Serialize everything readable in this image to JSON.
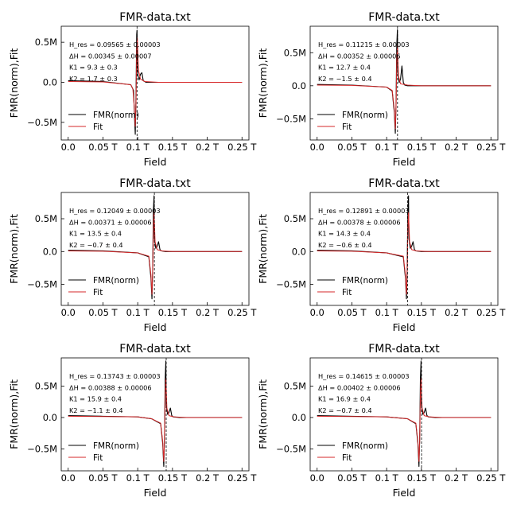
{
  "colors": {
    "data": "#000000",
    "fit": "#d62728",
    "marker": "#000000"
  },
  "chart_data": [
    {
      "type": "line",
      "title": "FMR-data.txt",
      "xlabel": "Field",
      "ylabel": "FMR(norm),Fit",
      "xlim": [
        -0.01,
        0.26
      ],
      "ylim": [
        -0.72,
        0.7
      ],
      "x_ticks": [
        0,
        0.05,
        0.1,
        0.15,
        0.2,
        0.25
      ],
      "x_tick_labels": [
        "0.0",
        "0.05 T",
        "0.1 T",
        "0.15 T",
        "0.2 T",
        "0.25 T"
      ],
      "y_ticks": [
        -0.5,
        0,
        0.5
      ],
      "y_tick_labels": [
        "−0.5M",
        "0.0",
        "0.5M"
      ],
      "legend": {
        "location": "lower-left",
        "entries": [
          "FMR(norm)",
          "Fit"
        ]
      },
      "annotation": [
        "H_res = 0.09565 ± 0.00003",
        "ΔH = 0.00345 ± 0.00007",
        "K1 = 9.3 ± 0.3",
        "K2 = 1.7 ± 0.3"
      ],
      "resonance_marker": 0.09902,
      "series": [
        {
          "name": "FMR(norm)",
          "x": [
            0,
            0.05,
            0.09,
            0.094,
            0.0955,
            0.0965,
            0.0975,
            0.0985,
            0.099,
            0.1,
            0.102,
            0.104,
            0.106,
            0.108,
            0.112,
            0.13,
            0.2,
            0.25
          ],
          "y": [
            0.02,
            0.01,
            -0.03,
            -0.1,
            -0.45,
            -0.65,
            -0.2,
            0.6,
            0.65,
            0.1,
            0.03,
            0.1,
            0.12,
            0.02,
            0,
            0,
            0,
            0
          ]
        },
        {
          "name": "Fit",
          "x": [
            0,
            0.05,
            0.09,
            0.093,
            0.095,
            0.0965,
            0.0975,
            0.0985,
            0.0995,
            0.101,
            0.104,
            0.11,
            0.13,
            0.2,
            0.25
          ],
          "y": [
            0.01,
            0.005,
            -0.03,
            -0.08,
            -0.3,
            -0.55,
            -0.3,
            0.4,
            0.55,
            0.15,
            0.04,
            0.01,
            0,
            0,
            0
          ]
        }
      ]
    },
    {
      "type": "line",
      "title": "FMR-data.txt",
      "xlabel": "Field",
      "ylabel": "FMR(norm),Fit",
      "xlim": [
        -0.01,
        0.26
      ],
      "ylim": [
        -0.82,
        0.9
      ],
      "x_ticks": [
        0,
        0.05,
        0.1,
        0.15,
        0.2,
        0.25
      ],
      "x_tick_labels": [
        "0.0",
        "0.05 T",
        "0.1 T",
        "0.15 T",
        "0.2 T",
        "0.25 T"
      ],
      "y_ticks": [
        -0.5,
        0,
        0.5
      ],
      "y_tick_labels": [
        "−0.5M",
        "0.0",
        "0.5M"
      ],
      "legend": {
        "location": "lower-left",
        "entries": [
          "FMR(norm)",
          "Fit"
        ]
      },
      "annotation": [
        "H_res = 0.11215 ± 0.00003",
        "ΔH = 0.00352 ± 0.00006",
        "K1 = 12.7 ± 0.4",
        "K2 = −1.5 ± 0.4"
      ],
      "resonance_marker": 0.11565,
      "series": [
        {
          "name": "FMR(norm)",
          "x": [
            0,
            0.05,
            0.1,
            0.108,
            0.111,
            0.1125,
            0.1135,
            0.1145,
            0.1155,
            0.116,
            0.118,
            0.12,
            0.122,
            0.124,
            0.126,
            0.13,
            0.15,
            0.2,
            0.25
          ],
          "y": [
            0.02,
            0.01,
            -0.02,
            -0.08,
            -0.4,
            -0.72,
            -0.3,
            0.6,
            0.85,
            0.2,
            0.05,
            0.1,
            0.3,
            0.05,
            0.01,
            0,
            0,
            0,
            0
          ]
        },
        {
          "name": "Fit",
          "x": [
            0,
            0.05,
            0.1,
            0.108,
            0.111,
            0.1125,
            0.1135,
            0.1145,
            0.1155,
            0.117,
            0.12,
            0.13,
            0.15,
            0.25
          ],
          "y": [
            0.01,
            0.005,
            -0.02,
            -0.07,
            -0.35,
            -0.65,
            -0.35,
            0.35,
            0.6,
            0.15,
            0.03,
            0.01,
            0,
            0
          ]
        }
      ]
    },
    {
      "type": "line",
      "title": "FMR-data.txt",
      "xlabel": "Field",
      "ylabel": "FMR(norm),Fit",
      "xlim": [
        -0.01,
        0.26
      ],
      "ylim": [
        -0.82,
        0.9
      ],
      "x_ticks": [
        0,
        0.05,
        0.1,
        0.15,
        0.2,
        0.25
      ],
      "x_tick_labels": [
        "0.0",
        "0.05 T",
        "0.1 T",
        "0.15 T",
        "0.2 T",
        "0.25 T"
      ],
      "y_ticks": [
        -0.5,
        0,
        0.5
      ],
      "y_tick_labels": [
        "−0.5M",
        "0.0",
        "0.5M"
      ],
      "legend": {
        "location": "lower-left",
        "entries": [
          "FMR(norm)",
          "Fit"
        ]
      },
      "annotation": [
        "H_res = 0.12049 ± 0.00003",
        "ΔH = 0.00371 ± 0.00006",
        "K1 = 13.5 ± 0.4",
        "K2 = −0.7 ± 0.4"
      ],
      "resonance_marker": 0.124,
      "series": [
        {
          "name": "FMR(norm)",
          "x": [
            0,
            0.05,
            0.1,
            0.116,
            0.119,
            0.1205,
            0.1215,
            0.1225,
            0.1235,
            0.124,
            0.126,
            0.128,
            0.13,
            0.132,
            0.134,
            0.14,
            0.2,
            0.25
          ],
          "y": [
            0.02,
            0.01,
            -0.02,
            -0.08,
            -0.4,
            -0.72,
            -0.3,
            0.6,
            0.85,
            0.2,
            0.05,
            0.08,
            0.15,
            0.03,
            0.01,
            0,
            0,
            0
          ]
        },
        {
          "name": "Fit",
          "x": [
            0,
            0.05,
            0.1,
            0.116,
            0.119,
            0.1205,
            0.1215,
            0.1225,
            0.1235,
            0.125,
            0.128,
            0.135,
            0.15,
            0.25
          ],
          "y": [
            0.01,
            0.005,
            -0.02,
            -0.07,
            -0.35,
            -0.65,
            -0.35,
            0.35,
            0.6,
            0.15,
            0.03,
            0.01,
            0,
            0
          ]
        }
      ]
    },
    {
      "type": "line",
      "title": "FMR-data.txt",
      "xlabel": "Field",
      "ylabel": "FMR(norm),Fit",
      "xlim": [
        -0.01,
        0.26
      ],
      "ylim": [
        -0.82,
        0.9
      ],
      "x_ticks": [
        0,
        0.05,
        0.1,
        0.15,
        0.2,
        0.25
      ],
      "x_tick_labels": [
        "0.0",
        "0.05 T",
        "0.1 T",
        "0.15 T",
        "0.2 T",
        "0.25 T"
      ],
      "y_ticks": [
        -0.5,
        0,
        0.5
      ],
      "y_tick_labels": [
        "−0.5M",
        "0.0",
        "0.5M"
      ],
      "legend": {
        "location": "lower-left",
        "entries": [
          "FMR(norm)",
          "Fit"
        ]
      },
      "annotation": [
        "H_res = 0.12891 ± 0.00003",
        "ΔH = 0.00378 ± 0.00006",
        "K1 = 14.3 ± 0.4",
        "K2 = −0.6 ± 0.4"
      ],
      "resonance_marker": 0.13,
      "series": [
        {
          "name": "FMR(norm)",
          "x": [
            0,
            0.05,
            0.1,
            0.124,
            0.127,
            0.1285,
            0.1295,
            0.1305,
            0.1315,
            0.132,
            0.134,
            0.136,
            0.138,
            0.14,
            0.142,
            0.15,
            0.2,
            0.25
          ],
          "y": [
            0.02,
            0.01,
            -0.02,
            -0.08,
            -0.4,
            -0.72,
            -0.3,
            0.6,
            0.85,
            0.2,
            0.05,
            0.08,
            0.15,
            0.03,
            0.01,
            0,
            0,
            0
          ]
        },
        {
          "name": "Fit",
          "x": [
            0,
            0.05,
            0.1,
            0.124,
            0.127,
            0.1285,
            0.1295,
            0.1305,
            0.1315,
            0.133,
            0.136,
            0.143,
            0.16,
            0.25
          ],
          "y": [
            0.01,
            0.005,
            -0.02,
            -0.07,
            -0.35,
            -0.65,
            -0.35,
            0.35,
            0.6,
            0.15,
            0.03,
            0.01,
            0,
            0
          ]
        }
      ]
    },
    {
      "type": "line",
      "title": "FMR-data.txt",
      "xlabel": "Field",
      "ylabel": "FMR(norm),Fit",
      "xlim": [
        -0.01,
        0.26
      ],
      "ylim": [
        -0.85,
        0.95
      ],
      "x_ticks": [
        0,
        0.05,
        0.1,
        0.15,
        0.2,
        0.25
      ],
      "x_tick_labels": [
        "0.0",
        "0.05 T",
        "0.1 T",
        "0.15 T",
        "0.2 T",
        "0.25 T"
      ],
      "y_ticks": [
        -0.5,
        0,
        0.5
      ],
      "y_tick_labels": [
        "−0.5M",
        "0.0",
        "0.5M"
      ],
      "legend": {
        "location": "lower-left",
        "entries": [
          "FMR(norm)",
          "Fit"
        ]
      },
      "annotation": [
        "H_res = 0.13743 ± 0.00003",
        "ΔH = 0.00388 ± 0.00006",
        "K1 = 15.9 ± 0.4",
        "K2 = −1.1 ± 0.4"
      ],
      "resonance_marker": 0.141,
      "series": [
        {
          "name": "FMR(norm)",
          "x": [
            0,
            0.05,
            0.1,
            0.12,
            0.133,
            0.136,
            0.1375,
            0.1385,
            0.1395,
            0.1405,
            0.141,
            0.143,
            0.145,
            0.147,
            0.149,
            0.151,
            0.16,
            0.2,
            0.25
          ],
          "y": [
            0.03,
            0.02,
            0.01,
            -0.02,
            -0.1,
            -0.42,
            -0.78,
            -0.35,
            0.6,
            0.9,
            0.2,
            0.05,
            0.08,
            0.15,
            0.03,
            0.01,
            0,
            0,
            0
          ]
        },
        {
          "name": "Fit",
          "x": [
            0,
            0.05,
            0.1,
            0.12,
            0.133,
            0.136,
            0.1375,
            0.1385,
            0.1395,
            0.1405,
            0.142,
            0.145,
            0.152,
            0.17,
            0.25
          ],
          "y": [
            0.02,
            0.015,
            0.01,
            -0.02,
            -0.09,
            -0.38,
            -0.7,
            -0.4,
            0.35,
            0.62,
            0.15,
            0.03,
            0.01,
            0,
            0
          ]
        }
      ]
    },
    {
      "type": "line",
      "title": "FMR-data.txt",
      "xlabel": "Field",
      "ylabel": "FMR(norm),Fit",
      "xlim": [
        -0.01,
        0.26
      ],
      "ylim": [
        -0.85,
        0.95
      ],
      "x_ticks": [
        0,
        0.05,
        0.1,
        0.15,
        0.2,
        0.25
      ],
      "x_tick_labels": [
        "0.0",
        "0.05 T",
        "0.1 T",
        "0.15 T",
        "0.2 T",
        "0.25 T"
      ],
      "y_ticks": [
        -0.5,
        0,
        0.5
      ],
      "y_tick_labels": [
        "−0.5M",
        "0.0",
        "0.5M"
      ],
      "legend": {
        "location": "lower-left",
        "entries": [
          "FMR(norm)",
          "Fit"
        ]
      },
      "annotation": [
        "H_res = 0.14615 ± 0.00003",
        "ΔH = 0.00402 ± 0.00006",
        "K1 = 16.9 ± 0.4",
        "K2 = −0.7 ± 0.4"
      ],
      "resonance_marker": 0.1502,
      "series": [
        {
          "name": "FMR(norm)",
          "x": [
            0,
            0.05,
            0.1,
            0.13,
            0.142,
            0.145,
            0.1465,
            0.1475,
            0.1485,
            0.1495,
            0.15,
            0.152,
            0.154,
            0.156,
            0.158,
            0.16,
            0.17,
            0.2,
            0.25
          ],
          "y": [
            0.03,
            0.02,
            0.01,
            -0.02,
            -0.1,
            -0.42,
            -0.78,
            -0.35,
            0.6,
            0.9,
            0.2,
            0.05,
            0.08,
            0.15,
            0.03,
            0.01,
            0,
            0,
            0
          ]
        },
        {
          "name": "Fit",
          "x": [
            0,
            0.05,
            0.1,
            0.13,
            0.142,
            0.145,
            0.1465,
            0.1475,
            0.1485,
            0.1495,
            0.151,
            0.154,
            0.161,
            0.18,
            0.25
          ],
          "y": [
            0.02,
            0.015,
            0.01,
            -0.02,
            -0.09,
            -0.38,
            -0.7,
            -0.4,
            0.35,
            0.62,
            0.15,
            0.03,
            0.01,
            0,
            0
          ]
        }
      ]
    }
  ]
}
